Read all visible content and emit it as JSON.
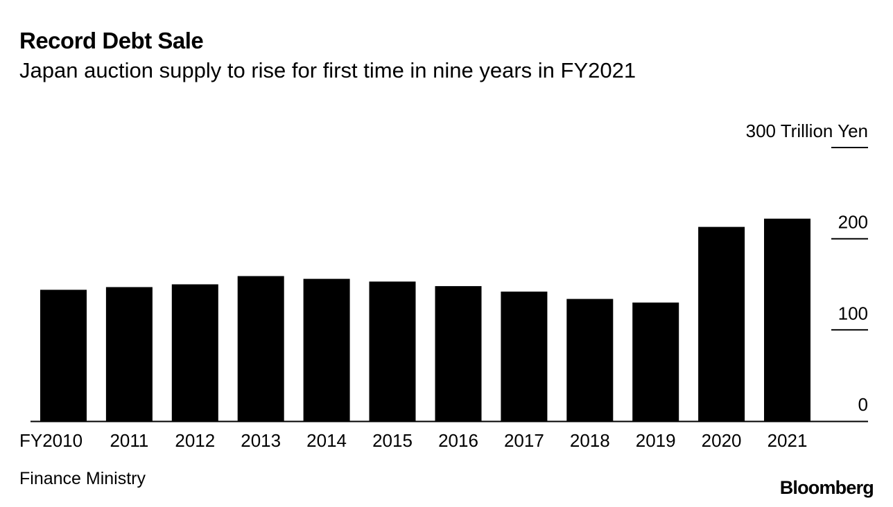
{
  "header": {
    "title": "Record Debt Sale",
    "subtitle": "Japan auction supply to rise for first time in nine years in FY2021"
  },
  "footer": {
    "source": "Finance Ministry",
    "brand": "Bloomberg"
  },
  "colors": {
    "bar": "#000000",
    "axis": "#000000",
    "background": "#ffffff"
  },
  "chart_data": {
    "type": "bar",
    "title": "Record Debt Sale",
    "subtitle": "Japan auction supply to rise for first time in nine years in FY2021",
    "unit_label": "Trillion Yen",
    "categories": [
      "FY2010",
      "2011",
      "2012",
      "2013",
      "2014",
      "2015",
      "2016",
      "2017",
      "2018",
      "2019",
      "2020",
      "2021"
    ],
    "values": [
      144,
      147,
      150,
      159,
      156,
      153,
      148,
      142,
      134,
      130,
      213,
      222
    ],
    "ylim": [
      0,
      300
    ],
    "yticks": [
      0,
      100,
      200,
      300
    ],
    "ytick_labels": [
      "0",
      "100",
      "200",
      "300 Trillion Yen"
    ],
    "y_axis_side": "right",
    "grid": false,
    "legend": "none",
    "xlabel": "",
    "ylabel": ""
  }
}
